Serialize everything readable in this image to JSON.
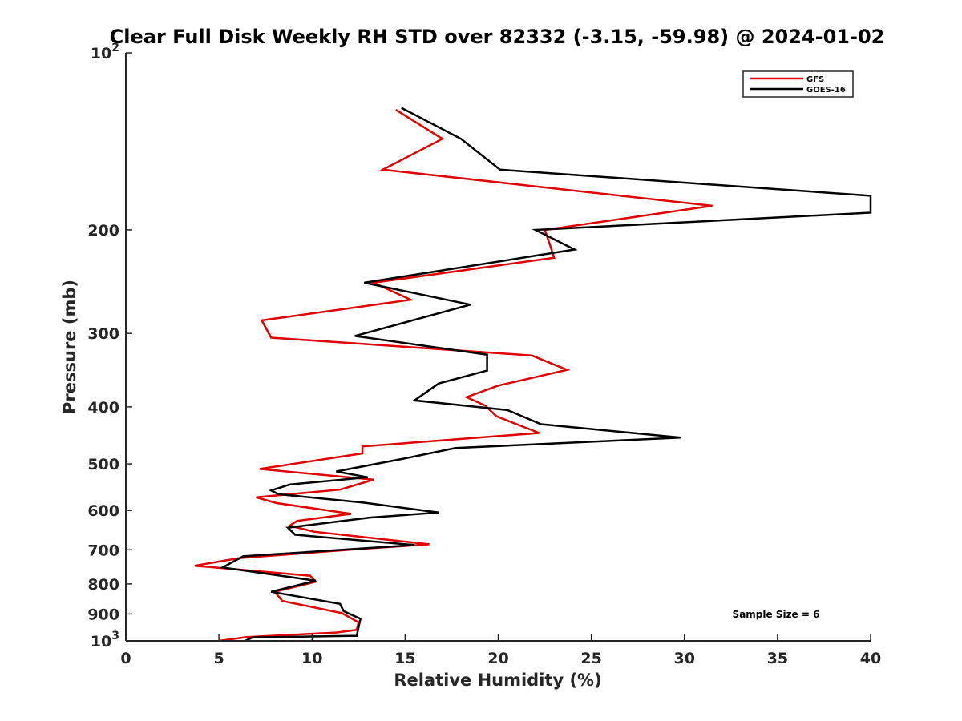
{
  "chart_data": {
    "type": "line",
    "title": "Clear Full Disk Weekly RH STD over 82332 (-3.15, -59.98) @ 2024-01-02",
    "xlabel": "Relative Humidity (%)",
    "ylabel": "Pressure (mb)",
    "xlim": [
      0,
      40
    ],
    "ylim": [
      100,
      1000
    ],
    "y_scale": "log",
    "y_reversed": true,
    "x_ticks": [
      "0",
      "5",
      "10",
      "15",
      "20",
      "25",
      "30",
      "35",
      "40"
    ],
    "y_ticks": [
      {
        "value": 100,
        "base": "10",
        "exp": "2"
      },
      {
        "value": 200,
        "label": "200"
      },
      {
        "value": 300,
        "label": "300"
      },
      {
        "value": 400,
        "label": "400"
      },
      {
        "value": 500,
        "label": "500"
      },
      {
        "value": 600,
        "label": "600"
      },
      {
        "value": 700,
        "label": "700"
      },
      {
        "value": 800,
        "label": "800"
      },
      {
        "value": 900,
        "label": "900"
      },
      {
        "value": 1000,
        "base": "10",
        "exp": "3"
      }
    ],
    "legend_position": "top-right",
    "grid": false,
    "annotation": "Sample Size = 6",
    "series": [
      {
        "name": "GFS",
        "color": "#e00000",
        "points": [
          [
            14.5,
            125
          ],
          [
            17,
            140
          ],
          [
            13.8,
            158
          ],
          [
            31.5,
            182
          ],
          [
            22.5,
            200
          ],
          [
            22.8,
            213
          ],
          [
            23,
            223
          ],
          [
            13.3,
            246
          ],
          [
            15.3,
            263
          ],
          [
            7.3,
            285
          ],
          [
            7.8,
            305
          ],
          [
            21.8,
            327
          ],
          [
            23.7,
            346
          ],
          [
            20,
            368
          ],
          [
            18.3,
            385
          ],
          [
            19.3,
            398
          ],
          [
            19.9,
            415
          ],
          [
            22.2,
            443
          ],
          [
            12.7,
            467
          ],
          [
            12.7,
            480
          ],
          [
            7.2,
            510
          ],
          [
            13.3,
            532
          ],
          [
            11.5,
            553
          ],
          [
            7.0,
            570
          ],
          [
            8.1,
            583
          ],
          [
            12.1,
            608
          ],
          [
            9.2,
            625
          ],
          [
            8.8,
            637
          ],
          [
            10.1,
            652
          ],
          [
            16.3,
            685
          ],
          [
            12.8,
            697
          ],
          [
            6.1,
            723
          ],
          [
            3.7,
            745
          ],
          [
            9.9,
            775
          ],
          [
            10.2,
            793
          ],
          [
            8.0,
            825
          ],
          [
            8.4,
            855
          ],
          [
            11.6,
            897
          ],
          [
            12.5,
            930
          ],
          [
            12.4,
            958
          ],
          [
            11.3,
            968
          ],
          [
            6.5,
            985
          ],
          [
            5.0,
            1000
          ]
        ]
      },
      {
        "name": "GOES-16",
        "color": "#000000",
        "points": [
          [
            14.8,
            124
          ],
          [
            18,
            140
          ],
          [
            20.1,
            158
          ],
          [
            40,
            175
          ],
          [
            40,
            187
          ],
          [
            22,
            200
          ],
          [
            24.1,
            216
          ],
          [
            12.8,
            246
          ],
          [
            18.5,
            268
          ],
          [
            12.3,
            303
          ],
          [
            19.4,
            326
          ],
          [
            19.4,
            347
          ],
          [
            16.8,
            365
          ],
          [
            15.5,
            390
          ],
          [
            20.5,
            405
          ],
          [
            22.3,
            428
          ],
          [
            29.8,
            451
          ],
          [
            17.7,
            470
          ],
          [
            14.9,
            490
          ],
          [
            11.3,
            515
          ],
          [
            13,
            527
          ],
          [
            8.8,
            542
          ],
          [
            7.8,
            555
          ],
          [
            8.2,
            563
          ],
          [
            12.8,
            582
          ],
          [
            16.8,
            605
          ],
          [
            13.1,
            617
          ],
          [
            8.7,
            642
          ],
          [
            9.1,
            660
          ],
          [
            15.5,
            687
          ],
          [
            6.3,
            718
          ],
          [
            5.2,
            750
          ],
          [
            10.2,
            790
          ],
          [
            7.8,
            825
          ],
          [
            11.5,
            865
          ],
          [
            11.7,
            890
          ],
          [
            12.6,
            917
          ],
          [
            12.4,
            980
          ],
          [
            6.8,
            987
          ],
          [
            6.4,
            1000
          ]
        ]
      }
    ]
  }
}
